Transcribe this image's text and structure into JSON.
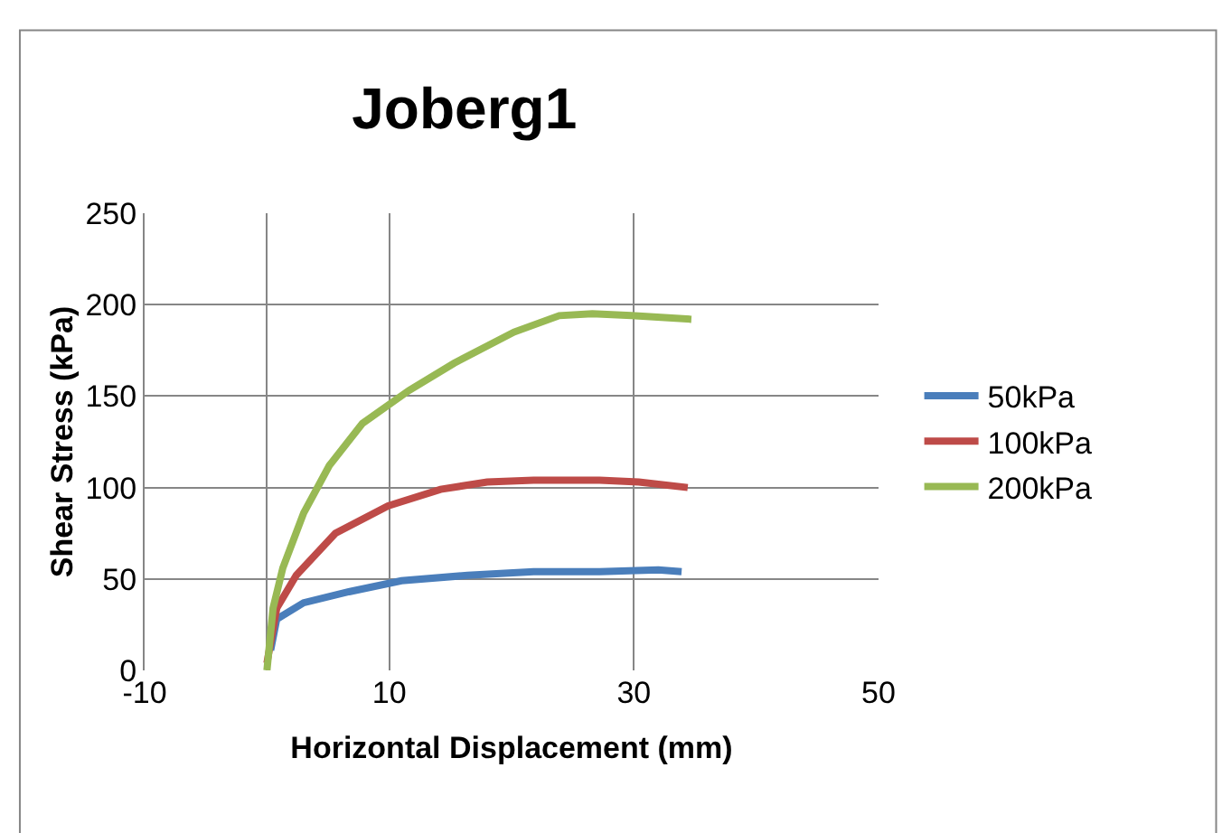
{
  "chart_data": {
    "type": "line",
    "title": "Joberg1",
    "xlabel": "Horizontal Displacement (mm)",
    "ylabel": "Shear Stress (kPa)",
    "xlim": [
      -10,
      50
    ],
    "xticks": [
      -10,
      10,
      30,
      50
    ],
    "ylim": [
      0,
      250
    ],
    "yticks": [
      0,
      50,
      100,
      150,
      200,
      250
    ],
    "grid": true,
    "legend": "right",
    "marker": "none",
    "line_style": "solid",
    "series": [
      {
        "name": "50kPa",
        "color": "#4a7ebb",
        "x": [
          0.3,
          0.8,
          3,
          6.7,
          11,
          16.4,
          21.8,
          27.2,
          32,
          33.9
        ],
        "values": [
          11,
          28,
          37,
          43,
          49,
          52,
          54,
          54,
          55,
          54
        ]
      },
      {
        "name": "100kPa",
        "color": "#be4b48",
        "x": [
          0,
          0.8,
          2.4,
          5.6,
          9.9,
          14.2,
          18,
          21.8,
          27.2,
          30.4,
          34.4
        ],
        "values": [
          4,
          34,
          52,
          75,
          90,
          99,
          103,
          104,
          104,
          103,
          100
        ]
      },
      {
        "name": "200kPa",
        "color": "#98b954",
        "x": [
          0,
          0.5,
          1.3,
          3,
          5.1,
          7.8,
          11.6,
          15.3,
          20.2,
          23.9,
          26.6,
          29.8,
          34.7
        ],
        "values": [
          0,
          34,
          56,
          86,
          112,
          135,
          153,
          168,
          185,
          194,
          195,
          194,
          192
        ]
      }
    ]
  }
}
